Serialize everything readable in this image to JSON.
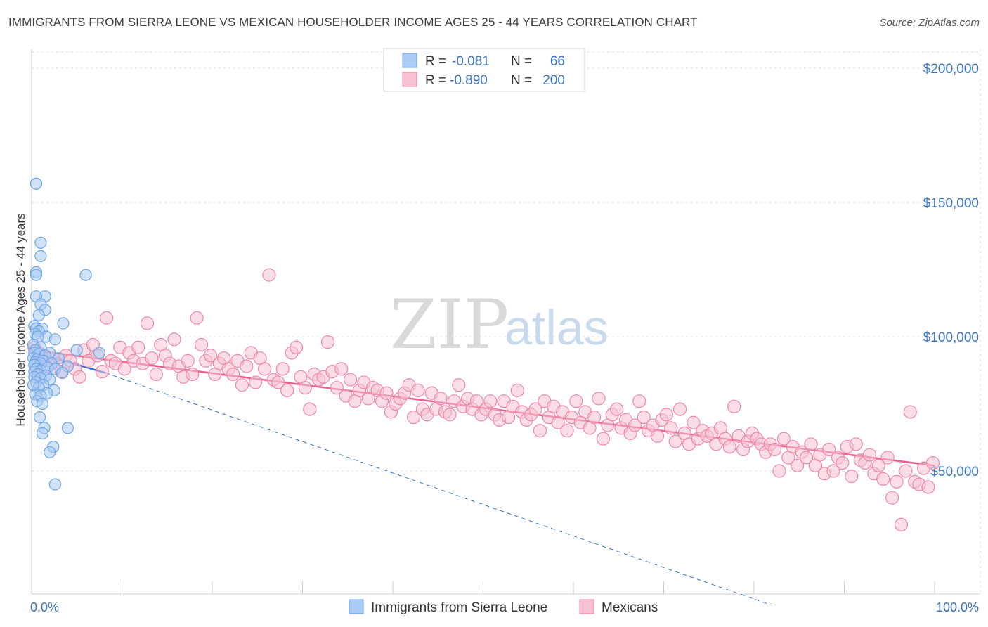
{
  "title": "IMMIGRANTS FROM SIERRA LEONE VS MEXICAN HOUSEHOLDER INCOME AGES 25 - 44 YEARS CORRELATION CHART",
  "source": "Source: ZipAtlas.com",
  "watermark": {
    "zip": "ZIP",
    "atlas": "atlas"
  },
  "colors": {
    "blue": "#6fa3e8",
    "blue_fill": "#aacbf3",
    "blue_line": "#2f6fcf",
    "pink": "#ef87a7",
    "pink_fill": "#f7c1d2",
    "pink_line": "#e8608c",
    "axis_text": "#3b74c4",
    "grid": "#dcdcdc"
  },
  "legend_stats": [
    {
      "r_label": "R =",
      "r_value": "-0.081",
      "n_label": "N =",
      "n_value": "66"
    },
    {
      "r_label": "R =",
      "r_value": "-0.890",
      "n_label": "N =",
      "n_value": "200"
    }
  ],
  "chart_data": {
    "type": "scatter",
    "title": "IMMIGRANTS FROM SIERRA LEONE VS MEXICAN HOUSEHOLDER INCOME AGES 25 - 44 YEARS CORRELATION CHART",
    "xlabel": "",
    "ylabel": "Householder Income Ages 25 - 44 years",
    "xlim": [
      0,
      100
    ],
    "ylim": [
      0,
      205000
    ],
    "x_tick_labels": [
      "0.0%",
      "100.0%"
    ],
    "y_ticks": [
      50000,
      100000,
      150000,
      200000
    ],
    "y_tick_labels": [
      "$50,000",
      "$100,000",
      "$150,000",
      "$200,000"
    ],
    "grid": true,
    "legend_position": "bottom",
    "series": [
      {
        "name": "Immigrants from Sierra Leone",
        "color": "#6fa3e8",
        "r": -0.081,
        "n": 66,
        "trend": {
          "x": [
            0,
            8.2
          ],
          "y": [
            94500,
            86500
          ],
          "dashed_extension_to": [
            82,
            0
          ]
        },
        "points": [
          [
            0.5,
            157000
          ],
          [
            1.0,
            135000
          ],
          [
            1.0,
            130000
          ],
          [
            0.5,
            124000
          ],
          [
            0.5,
            123000
          ],
          [
            6.0,
            123000
          ],
          [
            1.5,
            115000
          ],
          [
            0.5,
            115000
          ],
          [
            1.0,
            112000
          ],
          [
            1.5,
            110000
          ],
          [
            0.8,
            108000
          ],
          [
            3.5,
            105000
          ],
          [
            0.3,
            104000
          ],
          [
            0.5,
            103000
          ],
          [
            1.2,
            103000
          ],
          [
            0.8,
            102000
          ],
          [
            0.4,
            101000
          ],
          [
            1.6,
            100000
          ],
          [
            0.7,
            100000
          ],
          [
            2.6,
            99000
          ],
          [
            0.2,
            97000
          ],
          [
            1.0,
            96000
          ],
          [
            5.0,
            95000
          ],
          [
            0.4,
            95000
          ],
          [
            0.3,
            94000
          ],
          [
            2.0,
            94000
          ],
          [
            0.8,
            93500
          ],
          [
            1.5,
            93000
          ],
          [
            0.2,
            92000
          ],
          [
            3.0,
            92000
          ],
          [
            0.6,
            91500
          ],
          [
            1.3,
            91000
          ],
          [
            0.4,
            90500
          ],
          [
            2.2,
            90000
          ],
          [
            1.0,
            90000
          ],
          [
            0.3,
            89500
          ],
          [
            4.0,
            89000
          ],
          [
            1.8,
            88500
          ],
          [
            0.5,
            88000
          ],
          [
            2.6,
            88000
          ],
          [
            1.0,
            87500
          ],
          [
            0.3,
            87000
          ],
          [
            3.4,
            86500
          ],
          [
            0.7,
            86000
          ],
          [
            1.6,
            85500
          ],
          [
            0.3,
            85000
          ],
          [
            1.0,
            84500
          ],
          [
            2.0,
            84000
          ],
          [
            0.5,
            83000
          ],
          [
            1.3,
            82000
          ],
          [
            0.8,
            81000
          ],
          [
            2.5,
            80000
          ],
          [
            1.7,
            79000
          ],
          [
            0.4,
            78500
          ],
          [
            1.0,
            78000
          ],
          [
            0.6,
            76000
          ],
          [
            1.2,
            75000
          ],
          [
            1.4,
            66000
          ],
          [
            4.0,
            66000
          ],
          [
            1.2,
            64000
          ],
          [
            2.4,
            59000
          ],
          [
            2.0,
            57000
          ],
          [
            2.6,
            45000
          ],
          [
            0.9,
            70000
          ],
          [
            0.2,
            82000
          ],
          [
            7.5,
            94000
          ]
        ]
      },
      {
        "name": "Mexicans",
        "color": "#ef87a7",
        "r": -0.89,
        "n": 200,
        "trend": {
          "x": [
            0,
            100
          ],
          "y": [
            95000,
            52000
          ]
        },
        "points": [
          [
            0.3,
            96000
          ],
          [
            0.8,
            94000
          ],
          [
            1.2,
            91000
          ],
          [
            1.8,
            89000
          ],
          [
            2.3,
            92000
          ],
          [
            2.8,
            90000
          ],
          [
            3.3,
            87000
          ],
          [
            3.8,
            93000
          ],
          [
            4.3,
            91000
          ],
          [
            4.8,
            88000
          ],
          [
            5.3,
            85000
          ],
          [
            5.8,
            95000
          ],
          [
            6.3,
            91000
          ],
          [
            6.8,
            97000
          ],
          [
            7.3,
            93000
          ],
          [
            7.8,
            87000
          ],
          [
            8.3,
            107000
          ],
          [
            8.8,
            91000
          ],
          [
            9.3,
            90000
          ],
          [
            9.8,
            96000
          ],
          [
            10.3,
            88000
          ],
          [
            10.8,
            94000
          ],
          [
            11.3,
            91000
          ],
          [
            11.8,
            96000
          ],
          [
            12.3,
            90000
          ],
          [
            12.8,
            105000
          ],
          [
            13.3,
            92000
          ],
          [
            13.8,
            86000
          ],
          [
            14.3,
            97000
          ],
          [
            14.8,
            93000
          ],
          [
            15.3,
            90000
          ],
          [
            15.8,
            99000
          ],
          [
            16.3,
            89000
          ],
          [
            16.8,
            85000
          ],
          [
            17.3,
            91000
          ],
          [
            17.8,
            86000
          ],
          [
            18.3,
            107000
          ],
          [
            18.8,
            97000
          ],
          [
            19.3,
            91000
          ],
          [
            19.8,
            93000
          ],
          [
            20.3,
            86000
          ],
          [
            20.8,
            90000
          ],
          [
            21.3,
            92000
          ],
          [
            21.8,
            88000
          ],
          [
            22.3,
            86000
          ],
          [
            22.8,
            91000
          ],
          [
            23.3,
            82000
          ],
          [
            23.8,
            89000
          ],
          [
            24.3,
            94000
          ],
          [
            24.8,
            83000
          ],
          [
            25.3,
            92000
          ],
          [
            25.8,
            88000
          ],
          [
            26.3,
            123000
          ],
          [
            26.8,
            84000
          ],
          [
            27.3,
            83000
          ],
          [
            27.8,
            88000
          ],
          [
            28.3,
            80000
          ],
          [
            28.8,
            94000
          ],
          [
            29.3,
            96000
          ],
          [
            29.8,
            85000
          ],
          [
            30.3,
            81000
          ],
          [
            30.8,
            73000
          ],
          [
            31.3,
            86000
          ],
          [
            31.8,
            84000
          ],
          [
            32.3,
            85000
          ],
          [
            32.8,
            98000
          ],
          [
            33.3,
            87000
          ],
          [
            33.8,
            81000
          ],
          [
            34.3,
            88000
          ],
          [
            34.8,
            78000
          ],
          [
            35.3,
            84000
          ],
          [
            35.8,
            76000
          ],
          [
            36.3,
            80000
          ],
          [
            36.8,
            83000
          ],
          [
            37.3,
            77000
          ],
          [
            37.8,
            81000
          ],
          [
            38.3,
            80000
          ],
          [
            38.8,
            76000
          ],
          [
            39.3,
            79000
          ],
          [
            39.8,
            72000
          ],
          [
            40.3,
            75000
          ],
          [
            40.8,
            77000
          ],
          [
            41.3,
            79000
          ],
          [
            41.8,
            82000
          ],
          [
            42.3,
            70000
          ],
          [
            42.8,
            80000
          ],
          [
            43.3,
            73000
          ],
          [
            43.8,
            71000
          ],
          [
            44.3,
            79000
          ],
          [
            44.8,
            73000
          ],
          [
            45.3,
            77000
          ],
          [
            45.8,
            72000
          ],
          [
            46.3,
            71000
          ],
          [
            46.8,
            76000
          ],
          [
            47.3,
            82000
          ],
          [
            47.8,
            74000
          ],
          [
            48.3,
            77000
          ],
          [
            48.8,
            73000
          ],
          [
            49.3,
            76000
          ],
          [
            49.8,
            71000
          ],
          [
            50.3,
            73000
          ],
          [
            50.8,
            76000
          ],
          [
            51.3,
            71000
          ],
          [
            51.8,
            69000
          ],
          [
            52.3,
            76000
          ],
          [
            52.8,
            70000
          ],
          [
            53.3,
            74000
          ],
          [
            53.8,
            80000
          ],
          [
            54.3,
            72000
          ],
          [
            54.8,
            69000
          ],
          [
            55.3,
            71000
          ],
          [
            55.8,
            73000
          ],
          [
            56.3,
            65000
          ],
          [
            56.8,
            76000
          ],
          [
            57.3,
            70000
          ],
          [
            57.8,
            74000
          ],
          [
            58.3,
            68000
          ],
          [
            58.8,
            72000
          ],
          [
            59.3,
            65000
          ],
          [
            59.8,
            70000
          ],
          [
            60.3,
            76000
          ],
          [
            60.8,
            68000
          ],
          [
            61.3,
            72000
          ],
          [
            61.8,
            66000
          ],
          [
            62.3,
            70000
          ],
          [
            62.8,
            77000
          ],
          [
            63.3,
            62000
          ],
          [
            63.8,
            67000
          ],
          [
            64.3,
            71000
          ],
          [
            64.8,
            73000
          ],
          [
            65.3,
            66000
          ],
          [
            65.8,
            69000
          ],
          [
            66.3,
            64000
          ],
          [
            66.8,
            67000
          ],
          [
            67.3,
            76000
          ],
          [
            67.8,
            70000
          ],
          [
            68.3,
            65000
          ],
          [
            68.8,
            67000
          ],
          [
            69.3,
            63000
          ],
          [
            69.8,
            69000
          ],
          [
            70.3,
            71000
          ],
          [
            70.8,
            66000
          ],
          [
            71.3,
            61000
          ],
          [
            71.8,
            73000
          ],
          [
            72.3,
            64000
          ],
          [
            72.8,
            60000
          ],
          [
            73.3,
            68000
          ],
          [
            73.8,
            62000
          ],
          [
            74.3,
            65000
          ],
          [
            74.8,
            63000
          ],
          [
            75.3,
            64000
          ],
          [
            75.8,
            60000
          ],
          [
            76.3,
            66000
          ],
          [
            76.8,
            62000
          ],
          [
            77.3,
            59000
          ],
          [
            77.8,
            74000
          ],
          [
            78.3,
            63000
          ],
          [
            78.8,
            58000
          ],
          [
            79.3,
            61000
          ],
          [
            79.8,
            64000
          ],
          [
            80.3,
            62000
          ],
          [
            80.8,
            60000
          ],
          [
            81.3,
            57000
          ],
          [
            81.8,
            60000
          ],
          [
            82.3,
            58000
          ],
          [
            82.8,
            50000
          ],
          [
            83.3,
            62000
          ],
          [
            83.8,
            55000
          ],
          [
            84.3,
            59000
          ],
          [
            84.8,
            52000
          ],
          [
            85.3,
            57000
          ],
          [
            85.8,
            55000
          ],
          [
            86.3,
            60000
          ],
          [
            86.8,
            52000
          ],
          [
            87.3,
            56000
          ],
          [
            87.8,
            49000
          ],
          [
            88.3,
            58000
          ],
          [
            88.8,
            50000
          ],
          [
            89.3,
            55000
          ],
          [
            89.8,
            53000
          ],
          [
            90.3,
            59000
          ],
          [
            90.8,
            48000
          ],
          [
            91.3,
            60000
          ],
          [
            91.8,
            54000
          ],
          [
            92.3,
            53000
          ],
          [
            92.8,
            56000
          ],
          [
            93.3,
            49000
          ],
          [
            93.8,
            52000
          ],
          [
            94.3,
            47000
          ],
          [
            94.8,
            55000
          ],
          [
            95.3,
            40000
          ],
          [
            95.8,
            46000
          ],
          [
            96.3,
            30000
          ],
          [
            96.8,
            50000
          ],
          [
            97.3,
            72000
          ],
          [
            97.8,
            46000
          ],
          [
            98.3,
            45000
          ],
          [
            98.8,
            51000
          ],
          [
            99.3,
            44000
          ],
          [
            99.8,
            53000
          ]
        ]
      }
    ]
  },
  "axis_end_labels": {
    "left": "0.0%",
    "right": "100.0%"
  },
  "legend": [
    {
      "label": "Immigrants from Sierra Leone"
    },
    {
      "label": "Mexicans"
    }
  ]
}
